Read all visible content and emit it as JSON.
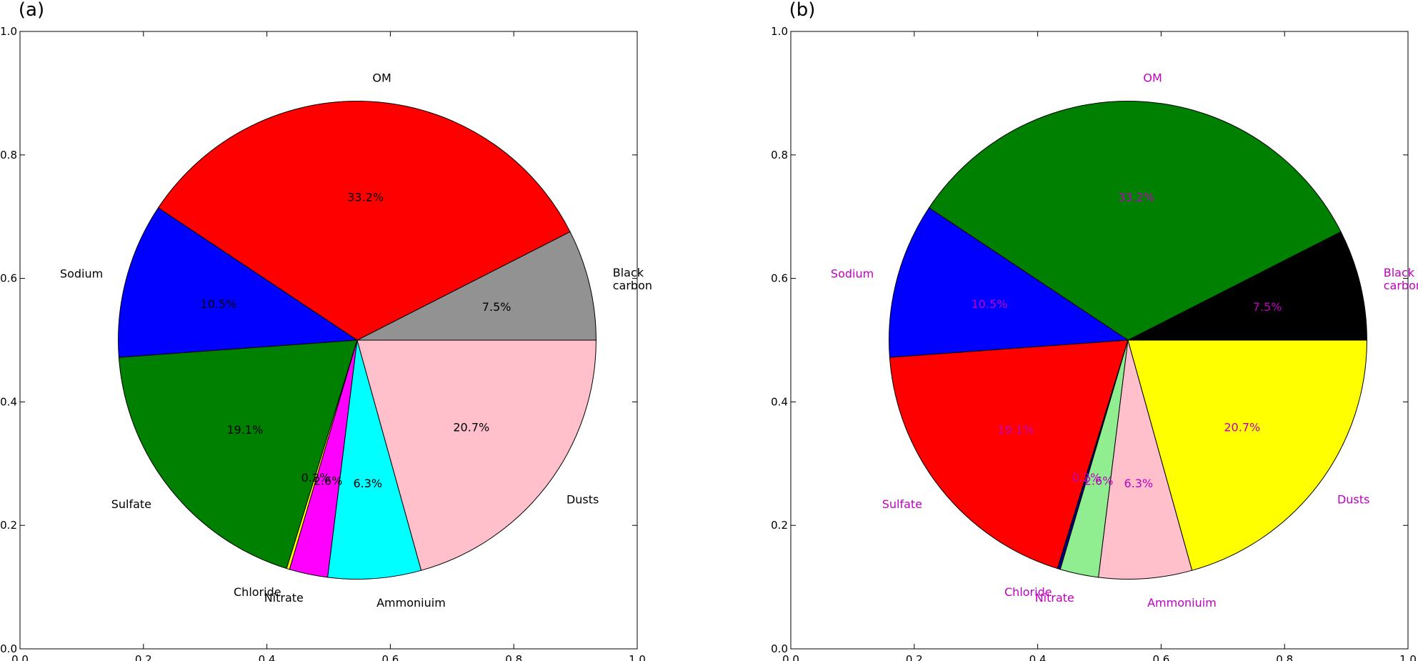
{
  "chart_data": [
    {
      "type": "pie",
      "panel_label": "(a)",
      "xlim": [
        0,
        1
      ],
      "ylim": [
        0,
        1
      ],
      "xticks": [
        "0.0",
        "0.2",
        "0.4",
        "0.6",
        "0.8",
        "1.0"
      ],
      "yticks": [
        "0.0",
        "0.2",
        "0.4",
        "0.6",
        "0.8",
        "1.0"
      ],
      "label_color": "#000000",
      "slices": [
        {
          "label": "Black carbon",
          "value": 7.5,
          "pct": "7.5%",
          "color": "#929292"
        },
        {
          "label": "OM",
          "value": 33.2,
          "pct": "33.2%",
          "color": "#ff0000"
        },
        {
          "label": "Sodium",
          "value": 10.5,
          "pct": "10.5%",
          "color": "#0000ff"
        },
        {
          "label": "Sulfate",
          "value": 19.1,
          "pct": "19.1%",
          "color": "#008000"
        },
        {
          "label": "Chloride",
          "value": 0.2,
          "pct": "0.2%",
          "color": "#ffff00"
        },
        {
          "label": "Nitrate",
          "value": 2.6,
          "pct": "2.6%",
          "color": "#ff00ff"
        },
        {
          "label": "Ammoniuim",
          "value": 6.3,
          "pct": "6.3%",
          "color": "#00ffff"
        },
        {
          "label": "Dusts",
          "value": 20.7,
          "pct": "20.7%",
          "color": "#ffc0cb"
        }
      ]
    },
    {
      "type": "pie",
      "panel_label": "(b)",
      "xlim": [
        0,
        1
      ],
      "ylim": [
        0,
        1
      ],
      "xticks": [
        "0.0",
        "0.2",
        "0.4",
        "0.6",
        "0.8",
        "1.0"
      ],
      "yticks": [
        "0.0",
        "0.2",
        "0.4",
        "0.6",
        "0.8",
        "1.0"
      ],
      "label_color": "#bf00bf",
      "slices": [
        {
          "label": "Black carbon",
          "value": 7.5,
          "pct": "7.5%",
          "color": "#000000"
        },
        {
          "label": "OM",
          "value": 33.2,
          "pct": "33.2%",
          "color": "#008000"
        },
        {
          "label": "Sodium",
          "value": 10.5,
          "pct": "10.5%",
          "color": "#0000ff"
        },
        {
          "label": "Sulfate",
          "value": 19.1,
          "pct": "19.1%",
          "color": "#ff0000"
        },
        {
          "label": "Chloride",
          "value": 0.2,
          "pct": "0.2%",
          "color": "#000080"
        },
        {
          "label": "Nitrate",
          "value": 2.6,
          "pct": "2.6%",
          "color": "#90ee90"
        },
        {
          "label": "Ammoniuim",
          "value": 6.3,
          "pct": "6.3%",
          "color": "#ffc0cb"
        },
        {
          "label": "Dusts",
          "value": 20.7,
          "pct": "20.7%",
          "color": "#ffff00"
        }
      ]
    }
  ]
}
